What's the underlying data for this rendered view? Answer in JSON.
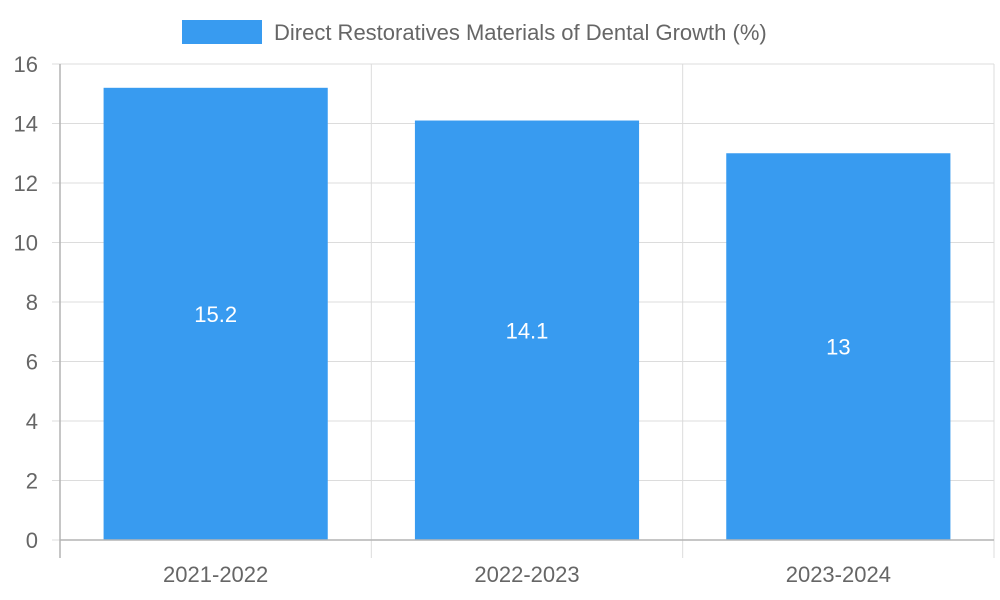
{
  "chart_data": {
    "type": "bar",
    "categories": [
      "2021-2022",
      "2022-2023",
      "2023-2024"
    ],
    "series": [
      {
        "name": "Direct Restoratives Materials of Dental Growth (%)",
        "values": [
          15.2,
          14.1,
          13
        ],
        "color": "#389BF0"
      }
    ],
    "ylim": [
      0,
      16
    ],
    "yticks": [
      0,
      2,
      4,
      6,
      8,
      10,
      12,
      14,
      16
    ],
    "data_labels": [
      "15.2",
      "14.1",
      "13"
    ],
    "grid": true,
    "legend_position": "top"
  }
}
